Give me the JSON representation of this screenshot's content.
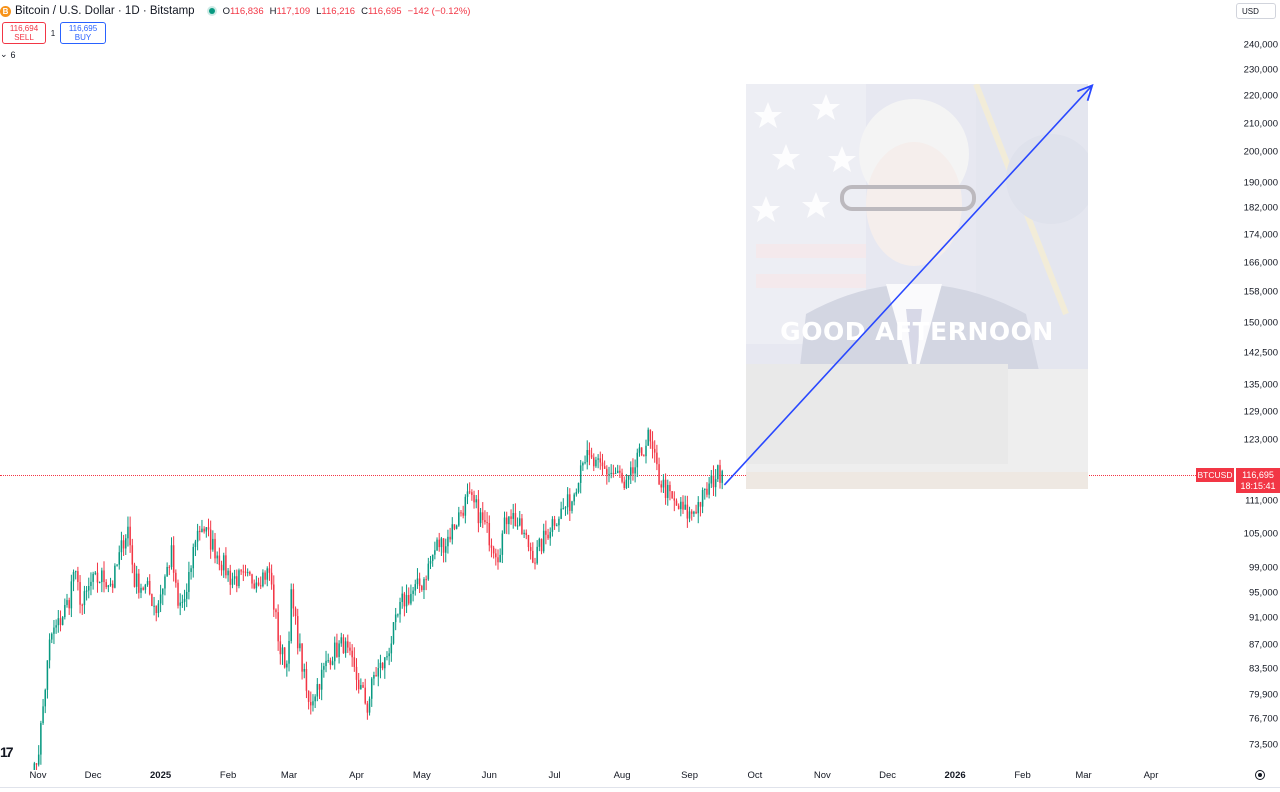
{
  "header": {
    "coin_glyph": "B",
    "title": "Bitcoin / U.S. Dollar · 1D · Bitstamp",
    "ohlc": {
      "o_key": "O",
      "o_val": "116,836",
      "h_key": "H",
      "h_val": "117,109",
      "l_key": "L",
      "l_val": "116,216",
      "c_key": "C",
      "c_val": "116,695",
      "change": "−142 (−0.12%)"
    },
    "status_color": "#089981"
  },
  "trade": {
    "sell_price": "116,694",
    "sell_label": "SELL",
    "spread": "1",
    "buy_price": "116,695",
    "buy_label": "BUY"
  },
  "indicators_toggle": {
    "glyph": "⌄",
    "count": "6"
  },
  "currency": "USD",
  "price_axis": [
    "240,000",
    "230,000",
    "220,000",
    "210,000",
    "200,000",
    "190,000",
    "182,000",
    "174,000",
    "166,000",
    "158,000",
    "150,000",
    "142,500",
    "135,000",
    "129,000",
    "123,000",
    "111,000",
    "105,000",
    "99,000",
    "95,000",
    "91,000",
    "87,000",
    "83,500",
    "79,900",
    "76,700",
    "73,500"
  ],
  "time_axis": [
    {
      "label": "Nov",
      "strong": false
    },
    {
      "label": "Dec",
      "strong": false
    },
    {
      "label": "2025",
      "strong": true
    },
    {
      "label": "Feb",
      "strong": false
    },
    {
      "label": "Mar",
      "strong": false
    },
    {
      "label": "Apr",
      "strong": false
    },
    {
      "label": "May",
      "strong": false
    },
    {
      "label": "Jun",
      "strong": false
    },
    {
      "label": "Jul",
      "strong": false
    },
    {
      "label": "Aug",
      "strong": false
    },
    {
      "label": "Sep",
      "strong": false
    },
    {
      "label": "Oct",
      "strong": false
    },
    {
      "label": "Nov",
      "strong": false
    },
    {
      "label": "Dec",
      "strong": false
    },
    {
      "label": "2026",
      "strong": true
    },
    {
      "label": "Feb",
      "strong": false
    },
    {
      "label": "Mar",
      "strong": false
    },
    {
      "label": "Apr",
      "strong": false
    }
  ],
  "last_price": {
    "symbol": "BTCUSD",
    "price": "116,695",
    "countdown": "18:15:41",
    "color": "#f23645"
  },
  "overlay_image": {
    "caption": "GOOD AFTERNOON"
  },
  "colors": {
    "up": "#089981",
    "down": "#f23645",
    "arrow": "#2948ff"
  },
  "logo_text": "17",
  "chart_data": {
    "type": "candlestick",
    "title": "Bitcoin / U.S. Dollar · 1D · Bitstamp",
    "scale": "log",
    "ylim": [
      71000,
      246000
    ],
    "x_range": [
      "2024-11-02",
      "2026-04-18"
    ],
    "anchors": [
      [
        "2024-11-03",
        68800
      ],
      [
        "2024-11-06",
        73000
      ],
      [
        "2024-11-11",
        87000
      ],
      [
        "2024-11-12",
        88500
      ],
      [
        "2024-11-15",
        90000
      ],
      [
        "2024-11-20",
        94000
      ],
      [
        "2024-11-22",
        98500
      ],
      [
        "2024-11-26",
        93000
      ],
      [
        "2024-11-30",
        96500
      ],
      [
        "2024-12-05",
        97500
      ],
      [
        "2024-12-10",
        96500
      ],
      [
        "2024-12-15",
        104000
      ],
      [
        "2024-12-17",
        106000
      ],
      [
        "2024-12-20",
        97000
      ],
      [
        "2024-12-26",
        95500
      ],
      [
        "2024-12-30",
        92500
      ],
      [
        "2025-01-06",
        101500
      ],
      [
        "2025-01-09",
        92500
      ],
      [
        "2025-01-13",
        94500
      ],
      [
        "2025-01-17",
        104500
      ],
      [
        "2025-01-20",
        106500
      ],
      [
        "2025-01-27",
        101500
      ],
      [
        "2025-02-02",
        97500
      ],
      [
        "2025-02-10",
        97000
      ],
      [
        "2025-02-20",
        98300
      ],
      [
        "2025-02-25",
        86000
      ],
      [
        "2025-02-28",
        84300
      ],
      [
        "2025-03-02",
        94200
      ],
      [
        "2025-03-10",
        78500
      ],
      [
        "2025-03-20",
        85500
      ],
      [
        "2025-03-26",
        87200
      ],
      [
        "2025-04-06",
        78300
      ],
      [
        "2025-04-09",
        82500
      ],
      [
        "2025-04-14",
        84500
      ],
      [
        "2025-04-22",
        93500
      ],
      [
        "2025-05-01",
        96500
      ],
      [
        "2025-05-08",
        103000
      ],
      [
        "2025-05-12",
        103500
      ],
      [
        "2025-05-22",
        111500
      ],
      [
        "2025-05-26",
        109500
      ],
      [
        "2025-06-05",
        101500
      ],
      [
        "2025-06-10",
        109500
      ],
      [
        "2025-06-17",
        104500
      ],
      [
        "2025-06-22",
        100800
      ],
      [
        "2025-06-30",
        107200
      ],
      [
        "2025-07-09",
        111200
      ],
      [
        "2025-07-14",
        120000
      ],
      [
        "2025-07-20",
        117500
      ],
      [
        "2025-07-31",
        115700
      ],
      [
        "2025-08-02",
        112500
      ],
      [
        "2025-08-07",
        117500
      ],
      [
        "2025-08-13",
        123500
      ],
      [
        "2025-08-18",
        115300
      ],
      [
        "2025-08-25",
        110200
      ],
      [
        "2025-09-01",
        108300
      ],
      [
        "2025-09-08",
        112000
      ],
      [
        "2025-09-13",
        115900
      ],
      [
        "2025-09-16",
        116695
      ]
    ]
  },
  "projection_arrow": {
    "from": [
      "2025-09-17",
      114000
    ],
    "to": [
      "2026-03-05",
      224000
    ]
  }
}
